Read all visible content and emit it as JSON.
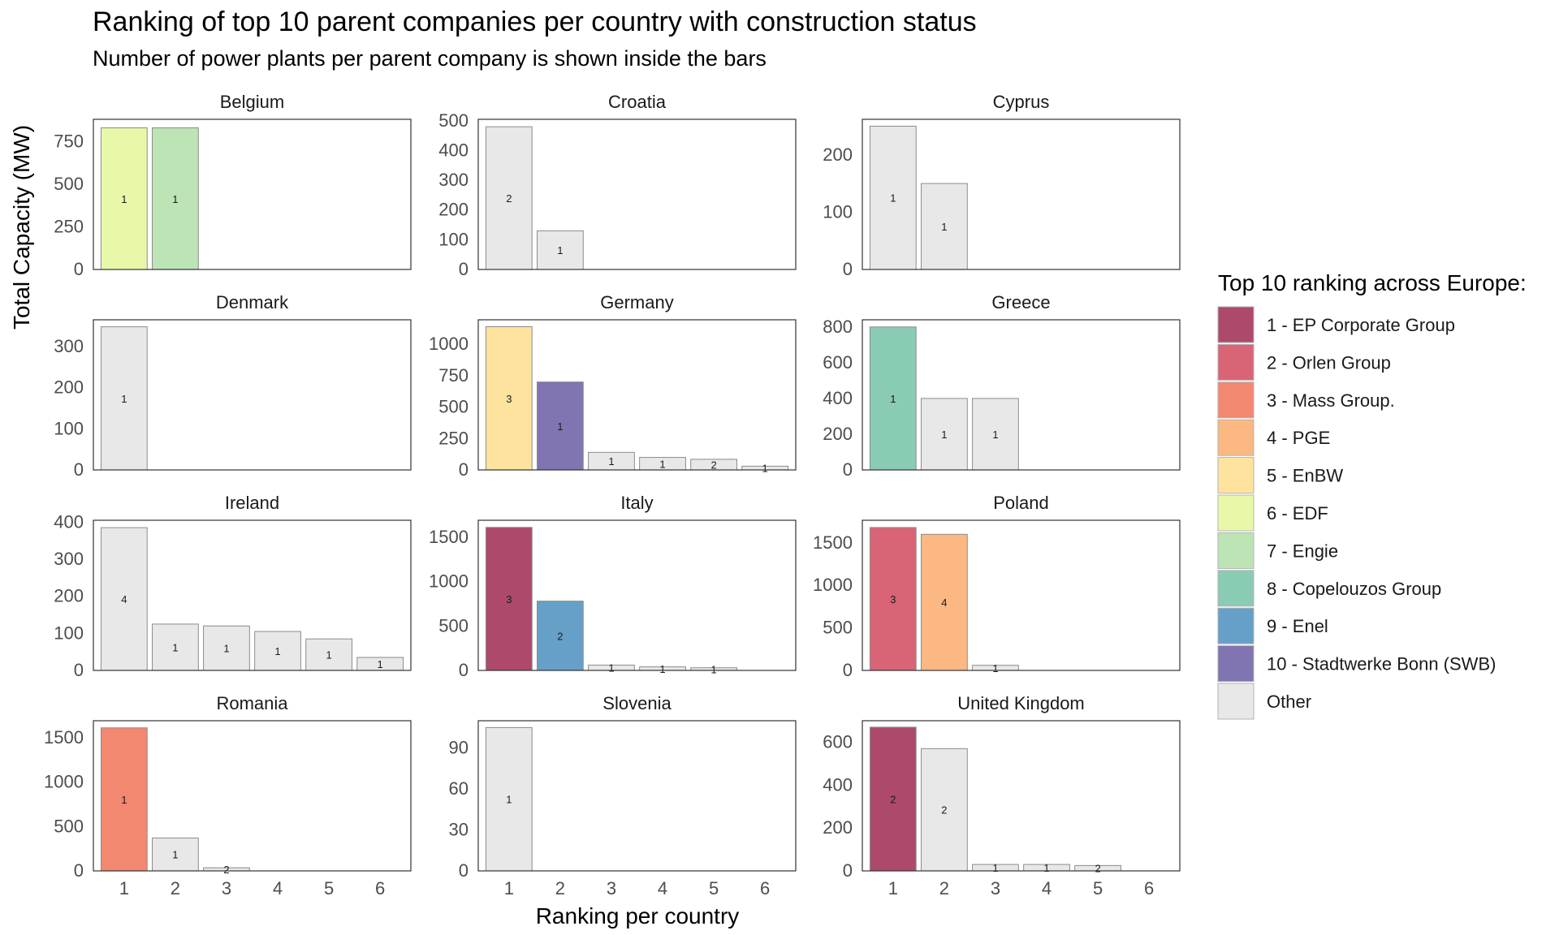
{
  "title": "Ranking of top 10 parent companies per country with construction status",
  "subtitle": "Number of power plants per parent company is shown inside the bars",
  "xlabel": "Ranking per country",
  "ylabel": "Total Capacity (MW)",
  "legend": {
    "title": "Top 10 ranking across Europe:",
    "placement": "right",
    "items": [
      {
        "key": "r1",
        "label": "1 - EP Corporate Group",
        "color": "#ad4a6c"
      },
      {
        "key": "r2",
        "label": "2 - Orlen Group",
        "color": "#d96476"
      },
      {
        "key": "r3",
        "label": "3 - Mass Group.",
        "color": "#f2886f"
      },
      {
        "key": "r4",
        "label": "4 - PGE",
        "color": "#fbb882"
      },
      {
        "key": "r5",
        "label": "5 - EnBW",
        "color": "#fde39e"
      },
      {
        "key": "r6",
        "label": "6 - EDF",
        "color": "#e8f8a9"
      },
      {
        "key": "r7",
        "label": "7 - Engie",
        "color": "#bce4b5"
      },
      {
        "key": "r8",
        "label": "8 - Copelouzos Group",
        "color": "#8acbb3"
      },
      {
        "key": "r9",
        "label": "9 - Enel",
        "color": "#66a0c9"
      },
      {
        "key": "r10",
        "label": "10 - Stadtwerke Bonn (SWB)",
        "color": "#8075b1"
      },
      {
        "key": "other",
        "label": "Other",
        "color": "#e8e8e8"
      }
    ]
  },
  "chart_data": {
    "type": "bar",
    "facet_by": "country",
    "x_categories": [
      "1",
      "2",
      "3",
      "4",
      "5",
      "6"
    ],
    "grid": false,
    "panels": [
      {
        "country": "Belgium",
        "ylim": [
          0,
          880
        ],
        "ticks": [
          0,
          250,
          500,
          750
        ],
        "tick_labels": [
          "0",
          "250",
          "500",
          "750"
        ],
        "bars": [
          {
            "x": 1,
            "value": 830,
            "group": "r6",
            "label": "1"
          },
          {
            "x": 2,
            "value": 830,
            "group": "r7",
            "label": "1"
          }
        ]
      },
      {
        "country": "Croatia",
        "ylim": [
          0,
          505
        ],
        "ticks": [
          0,
          100,
          200,
          300,
          400,
          500
        ],
        "tick_labels": [
          "0",
          "100",
          "200",
          "300",
          "400",
          "500"
        ],
        "bars": [
          {
            "x": 1,
            "value": 480,
            "group": "other",
            "label": "2"
          },
          {
            "x": 2,
            "value": 130,
            "group": "other",
            "label": "1"
          }
        ]
      },
      {
        "country": "Cyprus",
        "ylim": [
          0,
          262
        ],
        "ticks": [
          0,
          100,
          200
        ],
        "tick_labels": [
          "0",
          "100",
          "200"
        ],
        "bars": [
          {
            "x": 1,
            "value": 250,
            "group": "other",
            "label": "1"
          },
          {
            "x": 2,
            "value": 150,
            "group": "other",
            "label": "1"
          }
        ]
      },
      {
        "country": "Denmark",
        "ylim": [
          0,
          365
        ],
        "ticks": [
          0,
          100,
          200,
          300
        ],
        "tick_labels": [
          "0",
          "100",
          "200",
          "300"
        ],
        "bars": [
          {
            "x": 1,
            "value": 348,
            "group": "other",
            "label": "1"
          }
        ]
      },
      {
        "country": "Germany",
        "ylim": [
          0,
          1195
        ],
        "ticks": [
          0,
          250,
          500,
          750,
          1000
        ],
        "tick_labels": [
          "0",
          "250",
          "500",
          "750",
          "1000"
        ],
        "bars": [
          {
            "x": 1,
            "value": 1140,
            "group": "r5",
            "label": "3"
          },
          {
            "x": 2,
            "value": 700,
            "group": "r10",
            "label": "1"
          },
          {
            "x": 3,
            "value": 140,
            "group": "other",
            "label": "1"
          },
          {
            "x": 4,
            "value": 100,
            "group": "other",
            "label": "1"
          },
          {
            "x": 5,
            "value": 85,
            "group": "other",
            "label": "2"
          },
          {
            "x": 6,
            "value": 30,
            "group": "other",
            "label": "1"
          }
        ]
      },
      {
        "country": "Greece",
        "ylim": [
          0,
          840
        ],
        "ticks": [
          0,
          200,
          400,
          600,
          800
        ],
        "tick_labels": [
          "0",
          "200",
          "400",
          "600",
          "800"
        ],
        "bars": [
          {
            "x": 1,
            "value": 800,
            "group": "r8",
            "label": "1"
          },
          {
            "x": 2,
            "value": 400,
            "group": "other",
            "label": "1"
          },
          {
            "x": 3,
            "value": 400,
            "group": "other",
            "label": "1"
          }
        ]
      },
      {
        "country": "Ireland",
        "ylim": [
          0,
          405
        ],
        "ticks": [
          0,
          100,
          200,
          300,
          400
        ],
        "tick_labels": [
          "0",
          "100",
          "200",
          "300",
          "400"
        ],
        "bars": [
          {
            "x": 1,
            "value": 385,
            "group": "other",
            "label": "4"
          },
          {
            "x": 2,
            "value": 125,
            "group": "other",
            "label": "1"
          },
          {
            "x": 3,
            "value": 120,
            "group": "other",
            "label": "1"
          },
          {
            "x": 4,
            "value": 105,
            "group": "other",
            "label": "1"
          },
          {
            "x": 5,
            "value": 85,
            "group": "other",
            "label": "1"
          },
          {
            "x": 6,
            "value": 35,
            "group": "other",
            "label": "1"
          }
        ]
      },
      {
        "country": "Italy",
        "ylim": [
          0,
          1690
        ],
        "ticks": [
          0,
          500,
          1000,
          1500
        ],
        "tick_labels": [
          "0",
          "500",
          "1000",
          "1500"
        ],
        "bars": [
          {
            "x": 1,
            "value": 1610,
            "group": "r1",
            "label": "3"
          },
          {
            "x": 2,
            "value": 780,
            "group": "r9",
            "label": "2"
          },
          {
            "x": 3,
            "value": 60,
            "group": "other",
            "label": "1"
          },
          {
            "x": 4,
            "value": 40,
            "group": "other",
            "label": "1"
          },
          {
            "x": 5,
            "value": 30,
            "group": "other",
            "label": "1"
          }
        ]
      },
      {
        "country": "Poland",
        "ylim": [
          0,
          1765
        ],
        "ticks": [
          0,
          500,
          1000,
          1500
        ],
        "tick_labels": [
          "0",
          "500",
          "1000",
          "1500"
        ],
        "bars": [
          {
            "x": 1,
            "value": 1680,
            "group": "r2",
            "label": "3"
          },
          {
            "x": 2,
            "value": 1600,
            "group": "r4",
            "label": "4"
          },
          {
            "x": 3,
            "value": 60,
            "group": "other",
            "label": "1"
          }
        ]
      },
      {
        "country": "Romania",
        "ylim": [
          0,
          1690
        ],
        "ticks": [
          0,
          500,
          1000,
          1500
        ],
        "tick_labels": [
          "0",
          "500",
          "1000",
          "1500"
        ],
        "bars": [
          {
            "x": 1,
            "value": 1610,
            "group": "r3",
            "label": "1"
          },
          {
            "x": 2,
            "value": 370,
            "group": "other",
            "label": "1"
          },
          {
            "x": 3,
            "value": 35,
            "group": "other",
            "label": "2"
          }
        ]
      },
      {
        "country": "Slovenia",
        "ylim": [
          0,
          110
        ],
        "ticks": [
          0,
          30,
          60,
          90
        ],
        "tick_labels": [
          "0",
          "30",
          "60",
          "90"
        ],
        "bars": [
          {
            "x": 1,
            "value": 105,
            "group": "other",
            "label": "1"
          }
        ]
      },
      {
        "country": "United Kingdom",
        "ylim": [
          0,
          700
        ],
        "ticks": [
          0,
          200,
          400,
          600
        ],
        "tick_labels": [
          "0",
          "200",
          "400",
          "600"
        ],
        "bars": [
          {
            "x": 1,
            "value": 670,
            "group": "r1",
            "label": "2"
          },
          {
            "x": 2,
            "value": 570,
            "group": "other",
            "label": "2"
          },
          {
            "x": 3,
            "value": 30,
            "group": "other",
            "label": "1"
          },
          {
            "x": 4,
            "value": 30,
            "group": "other",
            "label": "1"
          },
          {
            "x": 5,
            "value": 25,
            "group": "other",
            "label": "2"
          }
        ]
      }
    ]
  }
}
